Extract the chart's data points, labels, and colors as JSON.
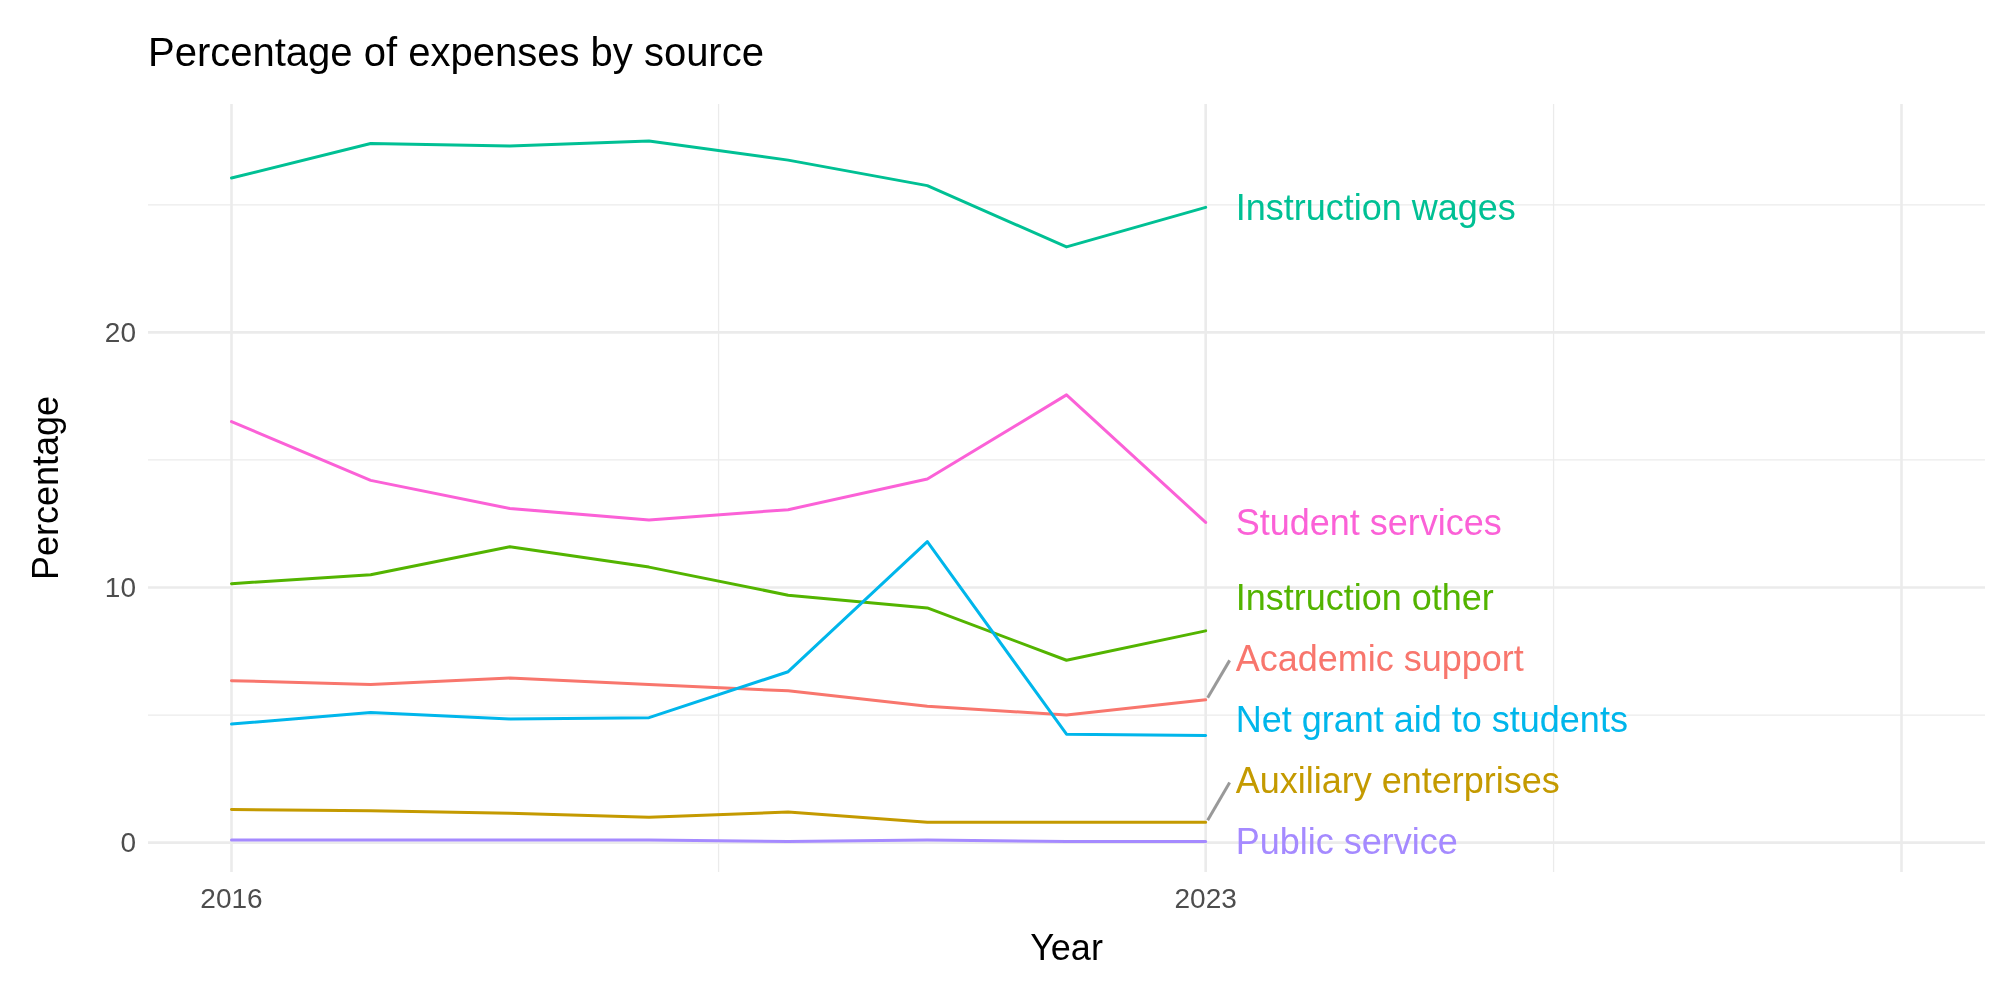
{
  "chart_data": {
    "type": "line",
    "title": "Percentage of expenses by source",
    "xlabel": "Year",
    "ylabel": "Percentage",
    "x": [
      2016,
      2017,
      2018,
      2019,
      2020,
      2021,
      2022,
      2023
    ],
    "xlim": [
      2015.4,
      2028.6
    ],
    "xticks": [
      2016,
      2023,
      {
        "value": 2028,
        "label": null
      }
    ],
    "ylim": [
      -1.15,
      28.95
    ],
    "yticks": [
      0,
      10,
      20
    ],
    "grid": true,
    "marker": "none",
    "line_style": "solid",
    "series": [
      {
        "name": "Academic support",
        "color": "#f8766d",
        "values": [
          6.35,
          6.2,
          6.45,
          6.2,
          5.95,
          5.35,
          5.0,
          5.6
        ]
      },
      {
        "name": "Auxiliary enterprises",
        "color": "#c49a00",
        "values": [
          1.3,
          1.25,
          1.15,
          1.0,
          1.2,
          0.8,
          0.8,
          0.8
        ]
      },
      {
        "name": "Instruction other",
        "color": "#53b400",
        "values": [
          10.15,
          10.5,
          11.6,
          10.8,
          9.7,
          9.2,
          7.15,
          8.3
        ]
      },
      {
        "name": "Instruction wages",
        "color": "#00c094",
        "values": [
          26.05,
          27.4,
          27.3,
          27.5,
          26.75,
          25.75,
          23.35,
          24.9
        ]
      },
      {
        "name": "Net grant aid to students",
        "color": "#00b6eb",
        "values": [
          4.65,
          5.1,
          4.85,
          4.9,
          6.7,
          11.8,
          4.25,
          4.2
        ]
      },
      {
        "name": "Public service",
        "color": "#a58aff",
        "values": [
          0.1,
          0.1,
          0.1,
          0.1,
          0.05,
          0.1,
          0.05,
          0.05
        ]
      },
      {
        "name": "Student services",
        "color": "#fb61d7",
        "values": [
          16.5,
          14.2,
          13.1,
          12.65,
          13.05,
          14.25,
          17.55,
          12.55
        ]
      }
    ]
  }
}
